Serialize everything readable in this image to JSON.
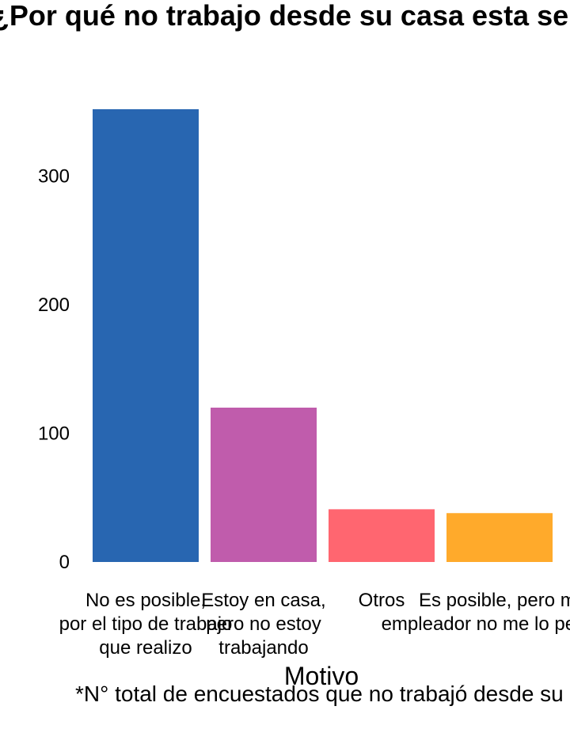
{
  "chart_data": {
    "type": "bar",
    "title": "¿Por qué no trabajo desde su casa esta semana?",
    "xlabel": "Motivo",
    "ylabel": "",
    "caption": "*N° total de encuestados que no trabajó desde su casa",
    "categories": [
      [
        "No es posible,",
        "por el tipo de trabajo",
        "que realizo"
      ],
      [
        "Estoy en casa,",
        "pero no estoy",
        "trabajando"
      ],
      [
        "Otros"
      ],
      [
        "Es posible, pero mi",
        "empleador no me lo permite"
      ]
    ],
    "values": [
      352,
      120,
      41,
      38
    ],
    "colors": [
      "#2866B1",
      "#C05CAC",
      "#FF6670",
      "#FFAA2B"
    ],
    "ylim": [
      0,
      360
    ],
    "yticks": [
      0,
      100,
      200,
      300
    ],
    "grid": false,
    "legend": "none"
  }
}
